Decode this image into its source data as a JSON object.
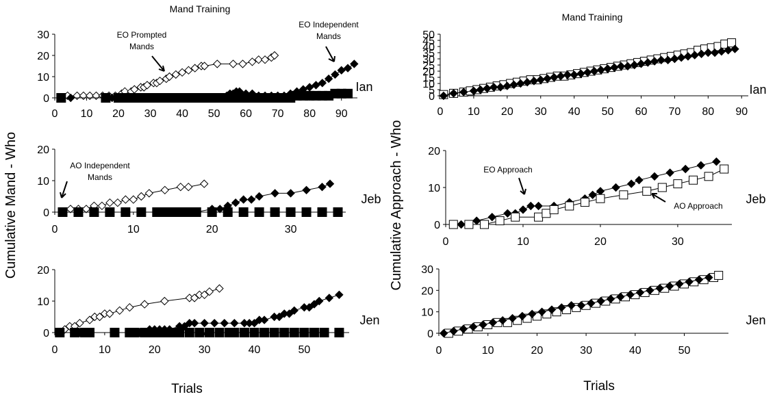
{
  "chart_data": [
    {
      "type": "line",
      "panel": "left-top",
      "title": "Mand Training",
      "participant": "Ian",
      "ylabel": "Cumulative Mand - Who",
      "xlim": [
        0,
        95
      ],
      "ylim": [
        0,
        30
      ],
      "xticks": [
        0,
        10,
        20,
        30,
        40,
        50,
        60,
        70,
        80,
        90
      ],
      "yticks": [
        0,
        10,
        20,
        30
      ],
      "annotations": [
        "EO Prompted\nMands",
        "EO Independent\nMands"
      ],
      "series": [
        {
          "marker": "open-diamond",
          "line": true,
          "x": [
            2,
            4,
            7,
            9,
            11,
            13,
            15,
            17,
            19,
            21,
            22,
            24,
            25,
            27,
            28,
            29,
            31,
            32,
            33,
            35,
            36,
            38,
            40,
            42,
            44,
            46,
            47,
            51,
            56,
            59,
            62,
            64,
            66,
            68,
            69
          ],
          "y": [
            0,
            1,
            1,
            1,
            1,
            1,
            1,
            1,
            1,
            2,
            3,
            3,
            4,
            5,
            5,
            6,
            7,
            7,
            8,
            9,
            10,
            11,
            12,
            13,
            14,
            15,
            15,
            16,
            16,
            16,
            17,
            18,
            18,
            19,
            20
          ]
        },
        {
          "marker": "filled-diamond",
          "line": true,
          "x": [
            5,
            18,
            20,
            22,
            24,
            26,
            28,
            30,
            32,
            34,
            36,
            38,
            40,
            42,
            44,
            46,
            48,
            50,
            52,
            54,
            55,
            56,
            57,
            58,
            60,
            62,
            64,
            66,
            68,
            70,
            72,
            74,
            76,
            78,
            80,
            82,
            84,
            86,
            88,
            90,
            92,
            94
          ],
          "y": [
            0,
            0,
            0,
            0,
            0,
            0,
            0,
            0,
            0,
            0,
            0,
            0,
            0,
            0,
            0,
            0,
            0,
            0,
            0,
            1,
            2,
            2,
            3,
            3,
            2,
            2,
            1,
            1,
            1,
            1,
            1,
            2,
            3,
            4,
            5,
            6,
            7,
            9,
            11,
            13,
            14,
            16
          ]
        },
        {
          "marker": "filled-square",
          "line": false,
          "x": [
            2,
            16,
            20,
            21,
            22,
            24,
            26,
            28,
            30,
            32,
            34,
            36,
            38,
            40,
            42,
            44,
            46,
            48,
            50,
            52,
            54,
            56,
            58,
            60,
            62,
            64,
            66,
            68,
            70,
            72,
            74,
            76,
            78,
            80,
            82,
            84,
            86,
            88,
            90,
            92
          ],
          "y": [
            0,
            0,
            0,
            0,
            0,
            0,
            0,
            0,
            0,
            0,
            0,
            0,
            0,
            0,
            0,
            0,
            0,
            0,
            0,
            0,
            0,
            0,
            0,
            0,
            0,
            0,
            0,
            0,
            0,
            0,
            0,
            1,
            1,
            1,
            1,
            1,
            1,
            2,
            2,
            2
          ]
        }
      ]
    },
    {
      "type": "line",
      "panel": "left-middle",
      "participant": "Jeb",
      "xlim": [
        0,
        37
      ],
      "ylim": [
        0,
        20
      ],
      "xticks": [
        0,
        10,
        20,
        30
      ],
      "yticks": [
        0,
        10,
        20
      ],
      "annotations": [
        "AO Independent\nMands"
      ],
      "series": [
        {
          "marker": "open-diamond",
          "line": true,
          "x": [
            1,
            2,
            3,
            4,
            5,
            6,
            7,
            8,
            9,
            10,
            11,
            12,
            14,
            16,
            17,
            19
          ],
          "y": [
            0,
            1,
            1,
            1,
            2,
            2,
            3,
            3,
            4,
            4,
            5,
            6,
            7,
            8,
            8,
            9
          ]
        },
        {
          "marker": "filled-diamond",
          "line": true,
          "x": [
            18,
            20,
            21,
            22,
            23,
            24,
            25,
            26,
            28,
            30,
            32,
            34,
            35
          ],
          "y": [
            0,
            1,
            1,
            2,
            3,
            4,
            4,
            5,
            6,
            6,
            7,
            8,
            9
          ]
        },
        {
          "marker": "filled-square",
          "line": true,
          "x": [
            1,
            3,
            5,
            7,
            9,
            11,
            13,
            14,
            15,
            16,
            17,
            18,
            20,
            22,
            24,
            26,
            28,
            30,
            32,
            34,
            36
          ],
          "y": [
            0,
            0,
            0,
            0,
            0,
            0,
            0,
            0,
            0,
            0,
            0,
            0,
            0,
            0,
            0,
            0,
            0,
            0,
            0,
            0,
            0
          ]
        }
      ]
    },
    {
      "type": "line",
      "panel": "left-bottom",
      "participant": "Jen",
      "xlabel": "Trials",
      "xlim": [
        0,
        59
      ],
      "ylim": [
        0,
        20
      ],
      "xticks": [
        0,
        10,
        20,
        30,
        40,
        50
      ],
      "yticks": [
        0,
        10,
        20
      ],
      "series": [
        {
          "marker": "open-diamond",
          "line": true,
          "x": [
            1,
            2,
            3,
            4,
            5,
            7,
            8,
            9,
            10,
            11,
            13,
            15,
            18,
            22,
            27,
            28,
            29,
            30,
            31,
            33
          ],
          "y": [
            0,
            1,
            2,
            2,
            3,
            4,
            5,
            5,
            6,
            6,
            7,
            8,
            9,
            10,
            11,
            11,
            12,
            12,
            13,
            14
          ]
        },
        {
          "marker": "filled-diamond",
          "line": true,
          "x": [
            1,
            5,
            17,
            19,
            20,
            21,
            22,
            23,
            25,
            26,
            27,
            28,
            30,
            32,
            34,
            36,
            38,
            39,
            40,
            41,
            42,
            44,
            45,
            46,
            47,
            48,
            50,
            51,
            52,
            53,
            55,
            57
          ],
          "y": [
            0,
            0,
            0,
            1,
            1,
            1,
            1,
            1,
            2,
            2,
            3,
            3,
            3,
            3,
            3,
            3,
            3,
            3,
            3,
            4,
            4,
            5,
            5,
            6,
            6,
            7,
            8,
            8,
            9,
            10,
            11,
            12
          ]
        },
        {
          "marker": "filled-square",
          "line": true,
          "x": [
            1,
            4,
            6,
            7,
            12,
            15,
            16,
            18,
            19,
            20,
            21,
            22,
            23,
            24,
            25,
            27,
            29,
            31,
            33,
            35,
            36,
            38,
            40,
            42,
            44,
            46,
            48,
            50,
            52,
            54,
            57
          ],
          "y": [
            0,
            0,
            0,
            0,
            0,
            0,
            0,
            0,
            0,
            0,
            0,
            0,
            0,
            0,
            0,
            0,
            0,
            0,
            0,
            0,
            0,
            0,
            0,
            0,
            0,
            0,
            0,
            0,
            0,
            0,
            0
          ]
        }
      ]
    },
    {
      "type": "line",
      "panel": "right-top",
      "title": "Mand Training",
      "participant": "Ian",
      "ylabel": "Cumulative Approach - Who",
      "xlim": [
        0,
        92
      ],
      "ylim": [
        0,
        50
      ],
      "xticks": [
        0,
        10,
        20,
        30,
        40,
        50,
        60,
        70,
        80,
        90
      ],
      "yticks": [
        0,
        5,
        10,
        15,
        20,
        25,
        30,
        35,
        40,
        45,
        50
      ],
      "series": [
        {
          "marker": "open-square",
          "line": true,
          "x": [
            1,
            4,
            7,
            9,
            11,
            13,
            15,
            17,
            19,
            21,
            23,
            25,
            27,
            29,
            31,
            33,
            35,
            37,
            39,
            41,
            43,
            45,
            47,
            49,
            51,
            53,
            55,
            57,
            59,
            61,
            63,
            65,
            67,
            69,
            71,
            73,
            75,
            77,
            79,
            81,
            83,
            85,
            87
          ],
          "y": [
            1,
            2,
            3,
            4,
            5,
            6,
            7,
            8,
            9,
            10,
            11,
            12,
            13,
            13,
            14,
            15,
            16,
            16,
            17,
            18,
            19,
            20,
            21,
            22,
            23,
            24,
            25,
            26,
            27,
            28,
            29,
            30,
            31,
            32,
            33,
            34,
            35,
            37,
            38,
            39,
            40,
            42,
            43
          ]
        },
        {
          "marker": "filled-diamond",
          "line": true,
          "x": [
            1,
            4,
            7,
            10,
            12,
            14,
            16,
            18,
            20,
            22,
            24,
            26,
            28,
            30,
            32,
            34,
            36,
            38,
            40,
            42,
            44,
            46,
            48,
            50,
            52,
            54,
            56,
            58,
            60,
            62,
            64,
            66,
            68,
            70,
            72,
            74,
            76,
            78,
            80,
            82,
            84,
            86,
            88
          ],
          "y": [
            0,
            2,
            3,
            4,
            5,
            6,
            7,
            7,
            8,
            9,
            10,
            11,
            12,
            13,
            14,
            15,
            16,
            17,
            17,
            18,
            19,
            20,
            21,
            22,
            23,
            24,
            24,
            25,
            26,
            27,
            28,
            29,
            29,
            30,
            31,
            32,
            33,
            34,
            35,
            35,
            36,
            37,
            38
          ]
        }
      ]
    },
    {
      "type": "line",
      "panel": "right-middle",
      "participant": "Jeb",
      "xlim": [
        0,
        37
      ],
      "ylim": [
        0,
        20
      ],
      "xticks": [
        0,
        10,
        20,
        30
      ],
      "yticks": [
        0,
        10,
        20
      ],
      "annotations": [
        "EO Approach",
        "AO Approach"
      ],
      "series": [
        {
          "marker": "filled-diamond",
          "line": true,
          "x": [
            2,
            4,
            6,
            8,
            9,
            10,
            11,
            12,
            14,
            16,
            18,
            19,
            20,
            22,
            24,
            25,
            27,
            29,
            31,
            33,
            35
          ],
          "y": [
            0,
            1,
            2,
            3,
            3,
            4,
            5,
            5,
            5,
            6,
            7,
            8,
            9,
            10,
            11,
            12,
            13,
            14,
            15,
            16,
            17
          ]
        },
        {
          "marker": "open-square",
          "line": true,
          "x": [
            1,
            3,
            5,
            7,
            9,
            12,
            13,
            14,
            16,
            18,
            20,
            23,
            26,
            28,
            30,
            32,
            34,
            36
          ],
          "y": [
            0,
            0,
            0,
            1,
            2,
            2,
            3,
            4,
            5,
            6,
            7,
            8,
            9,
            10,
            11,
            12,
            13,
            15
          ]
        }
      ]
    },
    {
      "type": "line",
      "panel": "right-bottom",
      "participant": "Jen",
      "xlabel": "Trials",
      "xlim": [
        0,
        59
      ],
      "ylim": [
        0,
        30
      ],
      "xticks": [
        0,
        10,
        20,
        30,
        40,
        50
      ],
      "yticks": [
        0,
        10,
        20,
        30
      ],
      "series": [
        {
          "marker": "open-square",
          "line": true,
          "x": [
            2,
            4,
            6,
            8,
            10,
            12,
            14,
            16,
            18,
            20,
            22,
            24,
            26,
            28,
            30,
            32,
            34,
            36,
            38,
            40,
            42,
            44,
            46,
            48,
            50,
            52,
            54,
            56,
            57
          ],
          "y": [
            0,
            1,
            2,
            3,
            4,
            5,
            5,
            6,
            7,
            8,
            9,
            10,
            11,
            12,
            13,
            14,
            15,
            16,
            17,
            18,
            19,
            20,
            21,
            22,
            23,
            24,
            25,
            26,
            27
          ]
        },
        {
          "marker": "filled-diamond",
          "line": true,
          "x": [
            1,
            3,
            5,
            7,
            9,
            11,
            13,
            15,
            17,
            19,
            21,
            23,
            25,
            27,
            29,
            31,
            33,
            35,
            37,
            39,
            41,
            43,
            45,
            47,
            49,
            51,
            53,
            55
          ],
          "y": [
            0,
            1,
            2,
            3,
            4,
            5,
            6,
            7,
            8,
            9,
            10,
            11,
            12,
            13,
            13,
            14,
            15,
            16,
            17,
            18,
            19,
            20,
            21,
            22,
            23,
            24,
            25,
            26
          ]
        }
      ]
    }
  ]
}
